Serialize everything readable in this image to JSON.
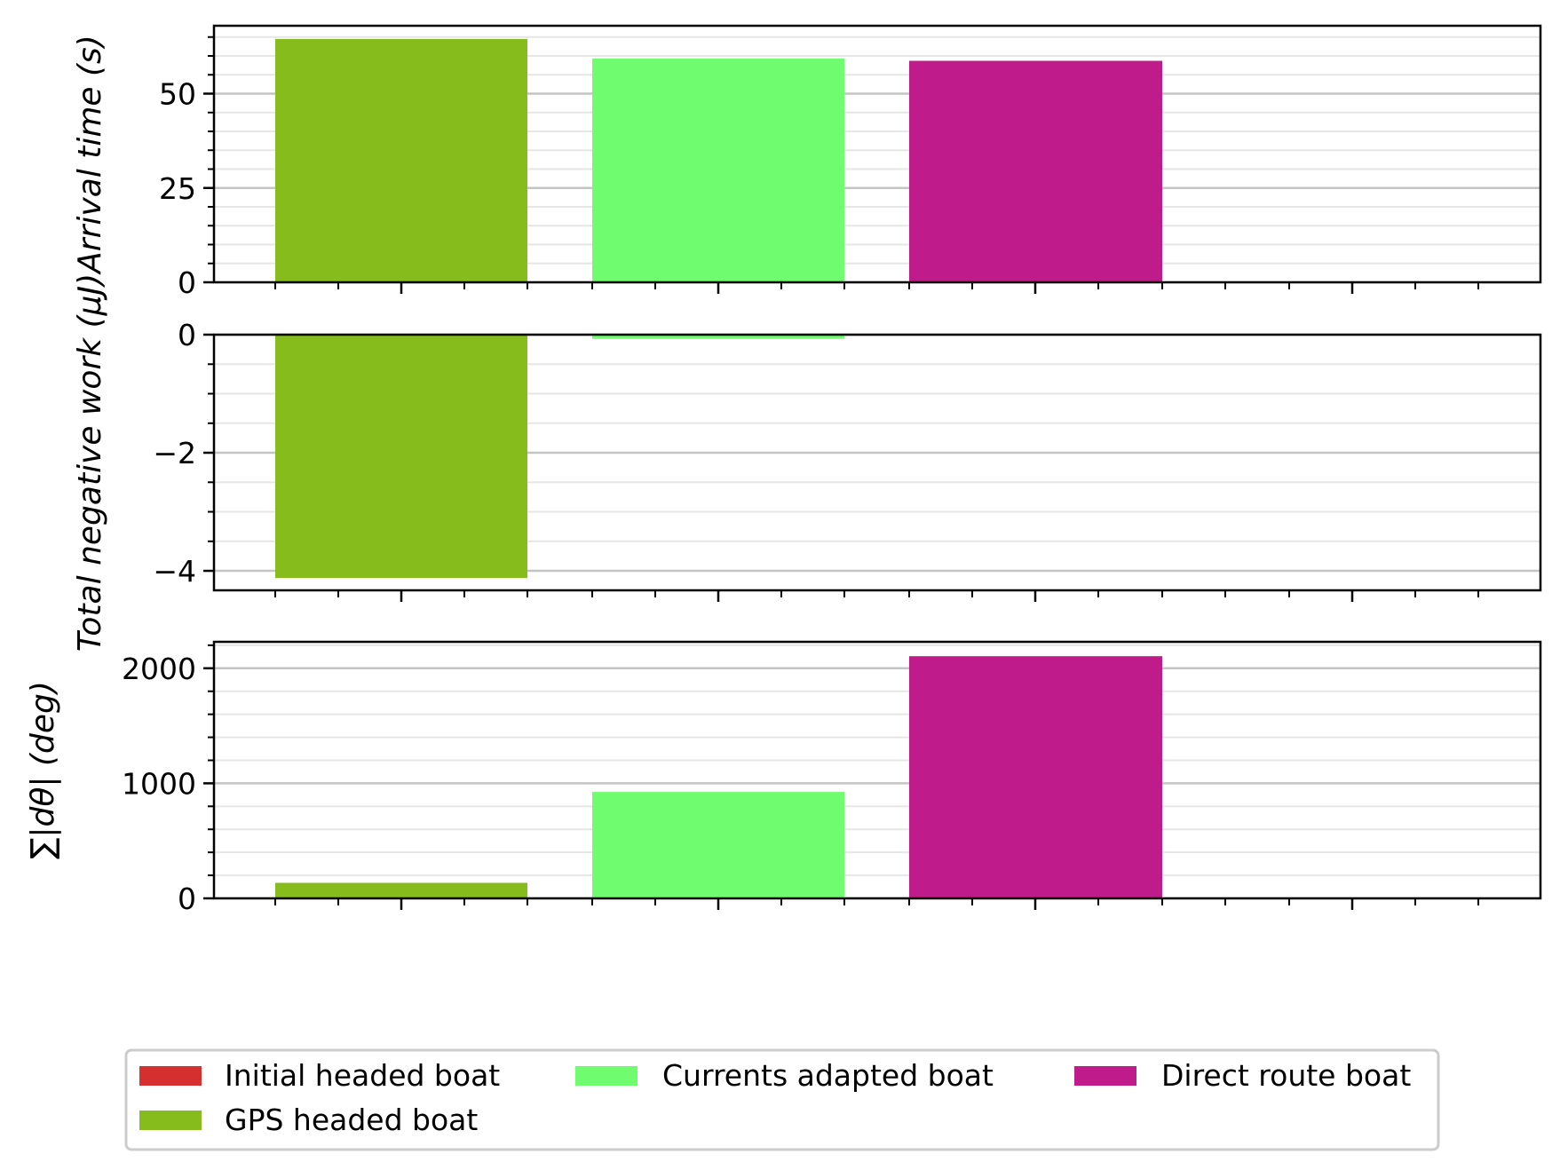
{
  "chart_data": [
    {
      "type": "bar",
      "ylabel": "Arrival time (s)",
      "ylim": [
        0,
        68
      ],
      "yticks": [
        0,
        25,
        50
      ],
      "yticks_text": [
        "0",
        "25",
        "50"
      ],
      "minor_step": 5,
      "grid": true,
      "series": [
        {
          "name": "GPS headed boat",
          "value": 64.5
        },
        {
          "name": "Currents adapted boat",
          "value": 59.3
        },
        {
          "name": "Direct route boat",
          "value": 58.7
        }
      ]
    },
    {
      "type": "bar",
      "ylabel": "Total negative work (μJ)",
      "ylim": [
        -4.33,
        0
      ],
      "yticks": [
        -4,
        -2,
        0
      ],
      "yticks_text": [
        "−4",
        "−2",
        "0"
      ],
      "minor_step": 0.5,
      "grid": true,
      "series": [
        {
          "name": "GPS headed boat",
          "value": -4.12
        },
        {
          "name": "Currents adapted boat",
          "value": -0.07
        },
        {
          "name": "Direct route boat",
          "value": 0
        }
      ]
    },
    {
      "type": "bar",
      "ylabel": "∑|dθ| (deg)",
      "ylim": [
        0,
        2230
      ],
      "yticks": [
        0,
        1000,
        2000
      ],
      "yticks_text": [
        "0",
        "1000",
        "2000"
      ],
      "minor_step": 200,
      "grid": true,
      "series": [
        {
          "name": "GPS headed boat",
          "value": 135
        },
        {
          "name": "Currents adapted boat",
          "value": 925
        },
        {
          "name": "Direct route boat",
          "value": 2105
        }
      ]
    }
  ],
  "legend": {
    "placement": "bottom-center",
    "items": [
      {
        "label": "Initial headed boat",
        "color": "#d62f2f"
      },
      {
        "label": "Currents adapted boat",
        "color": "#6ffd6f"
      },
      {
        "label": "Direct route boat",
        "color": "#c01b8b"
      },
      {
        "label": "GPS headed boat",
        "color": "#86bc1c"
      }
    ]
  },
  "colors": {
    "GPS headed boat": "#86bc1c",
    "Currents adapted boat": "#6ffd6f",
    "Direct route boat": "#c01b8b",
    "Initial headed boat": "#d62f2f"
  }
}
